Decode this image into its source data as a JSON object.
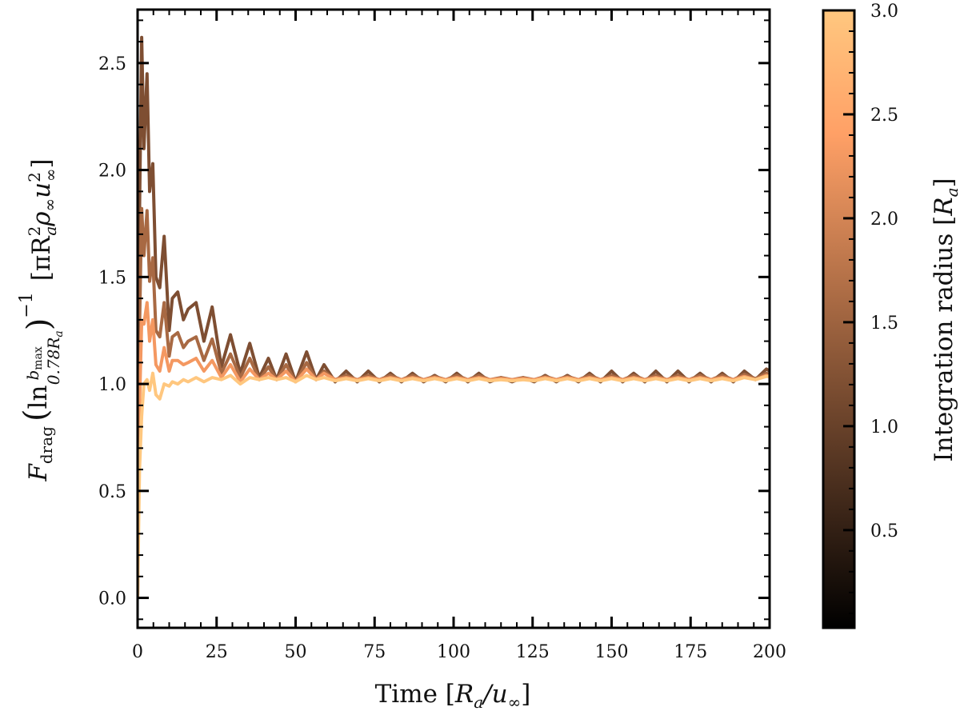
{
  "chart_data": {
    "type": "line",
    "xlabel": {
      "pre": "Time [",
      "R": "R",
      "Rsub": "a",
      "mid": "/u",
      "usub": "∞",
      "post": "]"
    },
    "ylabel": {
      "F": "F",
      "Fsub": "drag",
      "lparen": "(",
      "ln": "ln",
      "num": "b",
      "numsub": "max",
      "den": "0.78R",
      "densub": "a",
      "rparen": ")",
      "exp": "−1",
      "unit_pre": "[πR",
      "unit_R_sup": "2",
      "unit_R_sub": "a",
      "rho": "ρ",
      "rho_sub": "∞",
      "u": "u",
      "u_sup": "2",
      "u_sub": "∞",
      "unit_post": "]"
    },
    "xlim": [
      0,
      200
    ],
    "ylim": [
      -0.14,
      2.75
    ],
    "xticks": [
      0,
      25,
      50,
      75,
      100,
      125,
      150,
      175,
      200
    ],
    "xtick_labels": [
      "0",
      "25",
      "50",
      "75",
      "100",
      "125",
      "150",
      "175",
      "200"
    ],
    "yticks": [
      0,
      0.5,
      1.0,
      1.5,
      2.0,
      2.5
    ],
    "ytick_labels": [
      "0.0",
      "0.5",
      "1.0",
      "1.5",
      "2.0",
      "2.5"
    ],
    "grid": false,
    "legend": "none",
    "colorbar": {
      "colormap": "copper",
      "range": [
        0.03,
        3.0
      ],
      "ticks": [
        0.5,
        1.0,
        1.5,
        2.0,
        2.5,
        3.0
      ],
      "tick_labels": [
        "0.5",
        "1.0",
        "1.5",
        "2.0",
        "2.5",
        "3.0"
      ],
      "label": {
        "pre": "Integration radius [",
        "R": "R",
        "Rsub": "a",
        "post": "]"
      }
    },
    "x": [
      0,
      0.6,
      1.3,
      2,
      3,
      3.8,
      4.8,
      5.8,
      7,
      8.4,
      10,
      11,
      12.7,
      14.5,
      16,
      18.5,
      21,
      23.6,
      26.5,
      29.4,
      32.5,
      35.5,
      38.5,
      41.4,
      44,
      47,
      50,
      53.5,
      56.5,
      59,
      62.5,
      66,
      69.5,
      73,
      76.5,
      80,
      83.5,
      87,
      90.5,
      94,
      97.5,
      101,
      104.5,
      108,
      111.5,
      115,
      118.5,
      122,
      125.5,
      129,
      132.5,
      136,
      139.5,
      143,
      146.5,
      150,
      153.5,
      157,
      160.5,
      164,
      167.5,
      171,
      174.5,
      178,
      181.5,
      185,
      188.5,
      192,
      195.5,
      199,
      200
    ],
    "series": [
      {
        "integration_radius": 1.2,
        "values": [
          0,
          1.8,
          2.62,
          2.1,
          2.45,
          1.9,
          2.03,
          1.5,
          1.45,
          1.69,
          1.25,
          1.4,
          1.43,
          1.3,
          1.35,
          1.38,
          1.2,
          1.36,
          1.08,
          1.23,
          1.05,
          1.19,
          1.03,
          1.12,
          1.02,
          1.14,
          1.01,
          1.15,
          1.02,
          1.09,
          1.01,
          1.06,
          1.01,
          1.06,
          1.01,
          1.05,
          1.01,
          1.05,
          1.01,
          1.04,
          1.01,
          1.05,
          1.01,
          1.05,
          1.01,
          1.03,
          1.01,
          1.03,
          1.01,
          1.04,
          1.01,
          1.04,
          1.01,
          1.05,
          1.01,
          1.06,
          1.01,
          1.05,
          1.01,
          1.06,
          1.01,
          1.06,
          1.01,
          1.05,
          1.01,
          1.05,
          1.01,
          1.06,
          1.02,
          1.07,
          1.06
        ]
      },
      {
        "integration_radius": 1.6,
        "values": [
          0,
          1.26,
          1.82,
          1.6,
          1.81,
          1.48,
          1.59,
          1.25,
          1.22,
          1.38,
          1.13,
          1.22,
          1.24,
          1.17,
          1.2,
          1.22,
          1.11,
          1.21,
          1.05,
          1.14,
          1.03,
          1.12,
          1.02,
          1.08,
          1.02,
          1.09,
          1.01,
          1.1,
          1.02,
          1.06,
          1.02,
          1.04,
          1.02,
          1.04,
          1.02,
          1.04,
          1.02,
          1.04,
          1.02,
          1.035,
          1.02,
          1.04,
          1.02,
          1.04,
          1.02,
          1.03,
          1.02,
          1.03,
          1.02,
          1.035,
          1.02,
          1.035,
          1.02,
          1.04,
          1.02,
          1.04,
          1.02,
          1.04,
          1.02,
          1.04,
          1.02,
          1.04,
          1.02,
          1.04,
          1.02,
          1.04,
          1.02,
          1.045,
          1.025,
          1.05,
          1.045
        ]
      },
      {
        "integration_radius": 2.3,
        "values": [
          0,
          0.9,
          1.29,
          1.28,
          1.38,
          1.2,
          1.3,
          1.09,
          1.06,
          1.17,
          1.06,
          1.11,
          1.11,
          1.09,
          1.1,
          1.12,
          1.06,
          1.11,
          1.03,
          1.09,
          1.01,
          1.07,
          1.02,
          1.05,
          1.02,
          1.06,
          1.01,
          1.07,
          1.02,
          1.05,
          1.02,
          1.03,
          1.02,
          1.03,
          1.02,
          1.03,
          1.02,
          1.03,
          1.02,
          1.03,
          1.02,
          1.03,
          1.02,
          1.03,
          1.02,
          1.025,
          1.02,
          1.025,
          1.02,
          1.03,
          1.02,
          1.03,
          1.02,
          1.03,
          1.02,
          1.03,
          1.02,
          1.03,
          1.02,
          1.03,
          1.02,
          1.03,
          1.02,
          1.03,
          1.02,
          1.03,
          1.02,
          1.035,
          1.02,
          1.04,
          1.035
        ]
      },
      {
        "integration_radius": 3.0,
        "values": [
          0,
          0.6,
          0.85,
          1.0,
          1.02,
          0.97,
          1.05,
          0.95,
          0.93,
          1.0,
          0.99,
          1.01,
          1.0,
          1.02,
          1.01,
          1.03,
          1.01,
          1.03,
          1.02,
          1.04,
          1.0,
          1.03,
          1.02,
          1.03,
          1.02,
          1.03,
          1.01,
          1.04,
          1.02,
          1.03,
          1.015,
          1.025,
          1.015,
          1.025,
          1.015,
          1.025,
          1.015,
          1.025,
          1.015,
          1.025,
          1.015,
          1.025,
          1.015,
          1.025,
          1.015,
          1.02,
          1.015,
          1.02,
          1.015,
          1.025,
          1.015,
          1.025,
          1.015,
          1.025,
          1.015,
          1.025,
          1.015,
          1.025,
          1.015,
          1.025,
          1.015,
          1.025,
          1.015,
          1.025,
          1.015,
          1.025,
          1.015,
          1.03,
          1.02,
          1.035,
          1.035
        ]
      }
    ]
  }
}
